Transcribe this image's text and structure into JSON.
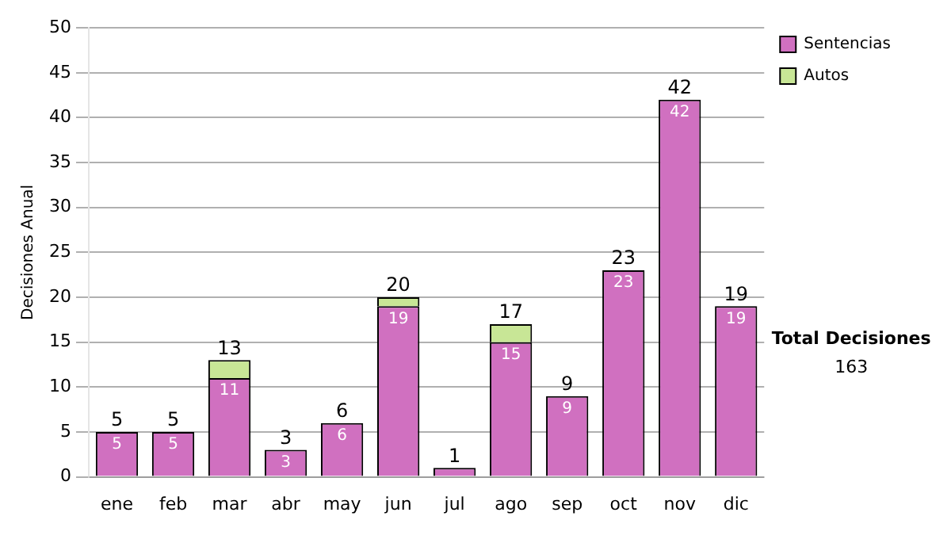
{
  "chart_data": {
    "type": "bar",
    "stacked": true,
    "ylabel": "Decisiones Anual",
    "categories": [
      "ene",
      "feb",
      "mar",
      "abr",
      "may",
      "jun",
      "jul",
      "ago",
      "sep",
      "oct",
      "nov",
      "dic"
    ],
    "series": [
      {
        "name": "Sentencias",
        "color": "#d070c0",
        "values": [
          5,
          5,
          11,
          3,
          6,
          19,
          1,
          15,
          9,
          23,
          42,
          19
        ],
        "value_labels": [
          "5",
          "5",
          "11",
          "3",
          "6",
          "19",
          null,
          "15",
          "9",
          "23",
          "42",
          "19"
        ]
      },
      {
        "name": "Autos",
        "color": "#c8e696",
        "values": [
          0,
          0,
          2,
          0,
          0,
          1,
          0,
          2,
          0,
          0,
          0,
          0
        ]
      }
    ],
    "totals": [
      "5",
      "5",
      "13",
      "3",
      "6",
      "20",
      "1",
      "17",
      "9",
      "23",
      "42",
      "19"
    ],
    "ylim": [
      0,
      50
    ],
    "yticks": [
      0,
      5,
      10,
      15,
      20,
      25,
      30,
      35,
      40,
      45,
      50
    ],
    "grid": "y",
    "legend": "right",
    "annotations": [
      "Total Decisiones",
      "163"
    ]
  }
}
